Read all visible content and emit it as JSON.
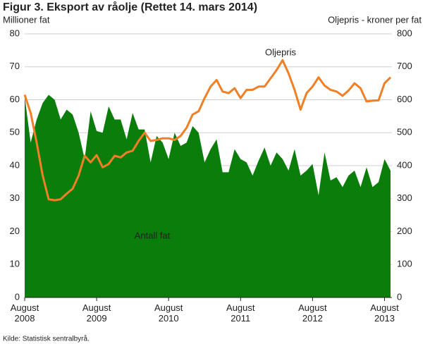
{
  "chart_data": {
    "type": "area-line",
    "title": "Figur 3. Eksport av råolje (Rettet 14. mars 2014)",
    "y_label": "Millioner fat",
    "y2_label": "Oljepris - kroner per fat",
    "source": "Kilde: Statistisk sentralbyrå.",
    "categories": [
      "August 2008",
      null,
      null,
      null,
      null,
      null,
      null,
      null,
      null,
      null,
      null,
      null,
      "August 2009",
      null,
      null,
      null,
      null,
      null,
      null,
      null,
      null,
      null,
      null,
      null,
      "August 2010",
      null,
      null,
      null,
      null,
      null,
      null,
      null,
      null,
      null,
      null,
      null,
      "August 2011",
      null,
      null,
      null,
      null,
      null,
      null,
      null,
      null,
      null,
      null,
      null,
      "August 2012",
      null,
      null,
      null,
      null,
      null,
      null,
      null,
      null,
      null,
      null,
      null,
      "August 2013",
      null
    ],
    "series": [
      {
        "name": "Antall fat",
        "type": "area",
        "color": "#0a7d0a",
        "values": [
          61,
          47,
          54,
          59,
          61.5,
          60,
          54,
          57,
          55.5,
          50,
          42,
          56.5,
          50.5,
          50,
          58,
          54,
          54,
          48,
          56,
          51,
          51,
          41,
          49,
          47,
          42,
          50,
          46,
          47,
          52,
          50,
          41,
          45,
          48,
          38,
          38,
          45,
          42,
          41,
          37,
          41.5,
          45.5,
          40,
          44,
          42,
          38.5,
          45,
          37,
          38.5,
          40.5,
          31,
          44,
          35.5,
          36.5,
          33.5,
          37,
          38.5,
          33.5,
          39.5,
          33.5,
          35,
          42,
          38.5
        ]
      },
      {
        "name": "Oljepris",
        "type": "line",
        "axis": "y2",
        "color": "#f07f26",
        "values": [
          615,
          560,
          470,
          370,
          298,
          295,
          298,
          315,
          330,
          370,
          430,
          410,
          432,
          395,
          405,
          430,
          425,
          440,
          445,
          475,
          500,
          475,
          478,
          483,
          483,
          478,
          490,
          515,
          555,
          565,
          605,
          640,
          660,
          625,
          620,
          635,
          605,
          630,
          630,
          640,
          640,
          665,
          690,
          720,
          680,
          630,
          570,
          620,
          640,
          668,
          643,
          630,
          625,
          612,
          628,
          650,
          635,
          595,
          597,
          598,
          650,
          668
        ]
      }
    ],
    "ylim": [
      0,
      80
    ],
    "yticks": [
      0,
      10,
      20,
      30,
      40,
      50,
      60,
      70,
      80
    ],
    "y2lim": [
      0,
      800
    ],
    "y2ticks": [
      0,
      100,
      200,
      300,
      400,
      500,
      600,
      700,
      800
    ],
    "grid": true
  }
}
